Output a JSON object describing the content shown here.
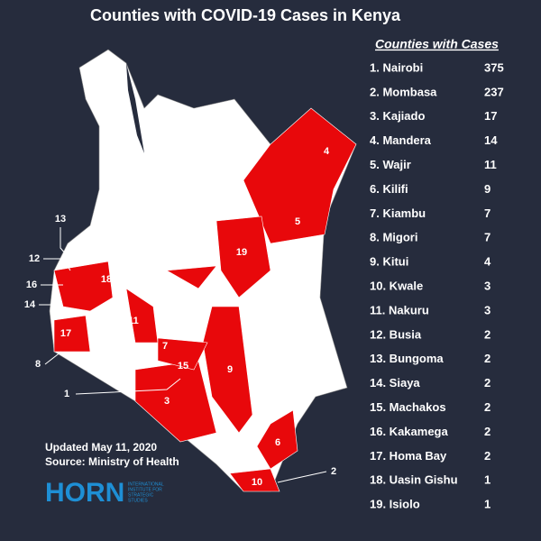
{
  "title": "Counties with COVID-19 Cases in Kenya",
  "list": {
    "header": "Counties with Cases",
    "rows": [
      {
        "label": "1. Nairobi",
        "cases": 375
      },
      {
        "label": "2. Mombasa",
        "cases": 237
      },
      {
        "label": "3. Kajiado",
        "cases": 17
      },
      {
        "label": "4. Mandera",
        "cases": 14
      },
      {
        "label": "5.  Wajir",
        "cases": 11
      },
      {
        "label": "6. Kilifi",
        "cases": 9
      },
      {
        "label": "7. Kiambu",
        "cases": 7
      },
      {
        "label": "8. Migori",
        "cases": 7
      },
      {
        "label": "9. Kitui",
        "cases": 4
      },
      {
        "label": "10. Kwale",
        "cases": 3
      },
      {
        "label": "11. Nakuru",
        "cases": 3
      },
      {
        "label": "12. Busia",
        "cases": 2
      },
      {
        "label": "13. Bungoma",
        "cases": 2
      },
      {
        "label": "14. Siaya",
        "cases": 2
      },
      {
        "label": "15. Machakos",
        "cases": 2
      },
      {
        "label": "16. Kakamega",
        "cases": 2
      },
      {
        "label": "17. Homa Bay",
        "cases": 2
      },
      {
        "label": "18. Uasin Gishu",
        "cases": 1
      },
      {
        "label": "19. Isiolo",
        "cases": 1
      }
    ]
  },
  "map_labels": [
    4,
    5,
    19,
    13,
    12,
    18,
    16,
    14,
    11,
    17,
    7,
    15,
    9,
    8,
    1,
    3,
    6,
    2,
    10
  ],
  "footer": {
    "updated": "Updated May 11, 2020",
    "source": "Source: Ministry of Health"
  },
  "logo": {
    "name": "HORN",
    "line1": "INTERNATIONAL",
    "line2": "INSTITUTE FOR",
    "line3": "STRATEGIC",
    "line4": "STUDIES"
  }
}
